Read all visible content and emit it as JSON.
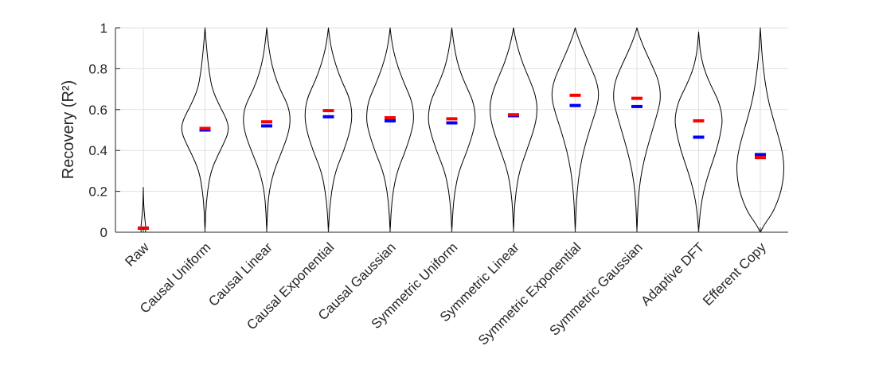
{
  "chart_data": {
    "type": "violin",
    "ylabel": "Recovery (R²)",
    "xlabel": "",
    "title": "",
    "ylim": [
      0,
      1
    ],
    "yticks": [
      "0",
      "0.2",
      "0.4",
      "0.6",
      "0.8",
      "1"
    ],
    "ytick_values": [
      0,
      0.2,
      0.4,
      0.6,
      0.8,
      1
    ],
    "grid": true,
    "colors": {
      "mean_marker": "#ff0000",
      "median_marker": "#0000ff",
      "violin_outline": "#000000",
      "grid": "#e0e0e0",
      "axis": "#262626"
    },
    "categories": [
      "Raw",
      "Causal Uniform",
      "Causal Linear",
      "Causal Exponential",
      "Causal Gaussian",
      "Symmetric Uniform",
      "Symmetric Linear",
      "Symmetric Exponential",
      "Symmetric Gaussian",
      "Adaptive DFT",
      "Efferent Copy"
    ],
    "series": [
      {
        "values": [
          0.02,
          0.508,
          0.54,
          0.595,
          0.56,
          0.555,
          0.575,
          0.67,
          0.655,
          0.545,
          0.365
        ]
      },
      {
        "values": [
          0.02,
          0.5,
          0.52,
          0.565,
          0.545,
          0.535,
          0.57,
          0.62,
          0.615,
          0.465,
          0.38
        ]
      }
    ],
    "violins": [
      {
        "profile": [
          [
            0,
            0.09
          ],
          [
            0.02,
            0.1
          ],
          [
            0.04,
            0.09
          ],
          [
            0.06,
            0.07
          ],
          [
            0.09,
            0.045
          ],
          [
            0.13,
            0.02
          ],
          [
            0.17,
            0.008
          ],
          [
            0.22,
            0.0
          ]
        ]
      },
      {
        "profile": [
          [
            0,
            0.0
          ],
          [
            0.1,
            0.03
          ],
          [
            0.2,
            0.1
          ],
          [
            0.3,
            0.25
          ],
          [
            0.38,
            0.55
          ],
          [
            0.45,
            0.85
          ],
          [
            0.5,
            1.0
          ],
          [
            0.55,
            0.92
          ],
          [
            0.62,
            0.6
          ],
          [
            0.7,
            0.3
          ],
          [
            0.78,
            0.18
          ],
          [
            0.86,
            0.1
          ],
          [
            0.94,
            0.04
          ],
          [
            1.0,
            0.0
          ]
        ]
      },
      {
        "profile": [
          [
            0,
            0.0
          ],
          [
            0.1,
            0.03
          ],
          [
            0.2,
            0.1
          ],
          [
            0.3,
            0.3
          ],
          [
            0.4,
            0.65
          ],
          [
            0.48,
            0.9
          ],
          [
            0.55,
            1.0
          ],
          [
            0.62,
            0.9
          ],
          [
            0.7,
            0.55
          ],
          [
            0.78,
            0.3
          ],
          [
            0.86,
            0.14
          ],
          [
            0.94,
            0.05
          ],
          [
            1.0,
            0.0
          ]
        ]
      },
      {
        "profile": [
          [
            0,
            0.0
          ],
          [
            0.1,
            0.04
          ],
          [
            0.2,
            0.13
          ],
          [
            0.3,
            0.3
          ],
          [
            0.4,
            0.65
          ],
          [
            0.5,
            0.92
          ],
          [
            0.58,
            1.0
          ],
          [
            0.66,
            0.88
          ],
          [
            0.74,
            0.55
          ],
          [
            0.82,
            0.3
          ],
          [
            0.9,
            0.12
          ],
          [
            0.96,
            0.04
          ],
          [
            1.0,
            0.0
          ]
        ]
      },
      {
        "profile": [
          [
            0,
            0.0
          ],
          [
            0.1,
            0.04
          ],
          [
            0.2,
            0.12
          ],
          [
            0.3,
            0.3
          ],
          [
            0.4,
            0.65
          ],
          [
            0.5,
            0.92
          ],
          [
            0.56,
            1.0
          ],
          [
            0.64,
            0.92
          ],
          [
            0.72,
            0.62
          ],
          [
            0.8,
            0.35
          ],
          [
            0.88,
            0.15
          ],
          [
            0.95,
            0.05
          ],
          [
            1.0,
            0.0
          ]
        ]
      },
      {
        "profile": [
          [
            0,
            0.0
          ],
          [
            0.1,
            0.04
          ],
          [
            0.2,
            0.12
          ],
          [
            0.3,
            0.3
          ],
          [
            0.4,
            0.65
          ],
          [
            0.5,
            0.92
          ],
          [
            0.56,
            1.0
          ],
          [
            0.64,
            0.9
          ],
          [
            0.72,
            0.58
          ],
          [
            0.8,
            0.3
          ],
          [
            0.88,
            0.14
          ],
          [
            0.95,
            0.05
          ],
          [
            1.0,
            0.0
          ]
        ]
      },
      {
        "profile": [
          [
            0,
            0.0
          ],
          [
            0.1,
            0.03
          ],
          [
            0.2,
            0.1
          ],
          [
            0.3,
            0.25
          ],
          [
            0.4,
            0.55
          ],
          [
            0.5,
            0.85
          ],
          [
            0.58,
            1.0
          ],
          [
            0.66,
            0.95
          ],
          [
            0.74,
            0.7
          ],
          [
            0.82,
            0.4
          ],
          [
            0.9,
            0.18
          ],
          [
            0.96,
            0.06
          ],
          [
            1.0,
            0.0
          ]
        ]
      },
      {
        "profile": [
          [
            0,
            0.0
          ],
          [
            0.1,
            0.03
          ],
          [
            0.2,
            0.08
          ],
          [
            0.3,
            0.18
          ],
          [
            0.4,
            0.35
          ],
          [
            0.5,
            0.6
          ],
          [
            0.6,
            0.88
          ],
          [
            0.67,
            1.0
          ],
          [
            0.74,
            0.9
          ],
          [
            0.82,
            0.6
          ],
          [
            0.9,
            0.3
          ],
          [
            0.96,
            0.1
          ],
          [
            1.0,
            0.0
          ]
        ]
      },
      {
        "profile": [
          [
            0,
            0.0
          ],
          [
            0.1,
            0.03
          ],
          [
            0.2,
            0.08
          ],
          [
            0.3,
            0.2
          ],
          [
            0.4,
            0.4
          ],
          [
            0.5,
            0.65
          ],
          [
            0.6,
            0.9
          ],
          [
            0.66,
            1.0
          ],
          [
            0.74,
            0.92
          ],
          [
            0.82,
            0.62
          ],
          [
            0.9,
            0.3
          ],
          [
            0.96,
            0.1
          ],
          [
            1.0,
            0.0
          ]
        ]
      },
      {
        "profile": [
          [
            0,
            0.0
          ],
          [
            0.1,
            0.06
          ],
          [
            0.2,
            0.2
          ],
          [
            0.3,
            0.45
          ],
          [
            0.4,
            0.75
          ],
          [
            0.5,
            0.95
          ],
          [
            0.56,
            1.0
          ],
          [
            0.64,
            0.85
          ],
          [
            0.72,
            0.5
          ],
          [
            0.8,
            0.22
          ],
          [
            0.88,
            0.07
          ],
          [
            0.95,
            0.02
          ],
          [
            0.98,
            0.0
          ]
        ]
      },
      {
        "profile": [
          [
            0,
            0.0
          ],
          [
            0.04,
            0.18
          ],
          [
            0.1,
            0.55
          ],
          [
            0.2,
            0.88
          ],
          [
            0.3,
            1.0
          ],
          [
            0.38,
            0.95
          ],
          [
            0.46,
            0.78
          ],
          [
            0.55,
            0.55
          ],
          [
            0.65,
            0.32
          ],
          [
            0.75,
            0.18
          ],
          [
            0.85,
            0.08
          ],
          [
            0.95,
            0.025
          ],
          [
            1.0,
            0.0
          ]
        ]
      }
    ]
  }
}
